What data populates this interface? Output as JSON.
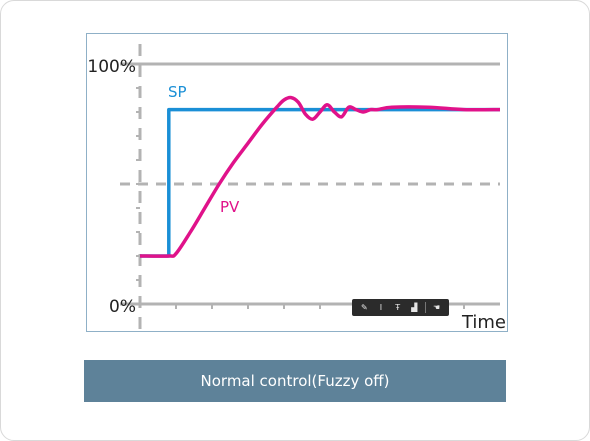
{
  "caption": "Normal control(Fuzzy off)",
  "toolbar": {
    "icons": [
      "pen-icon",
      "text-icon",
      "text-size-icon",
      "image-icon",
      "hand-icon"
    ],
    "glyphs": [
      "✎",
      "I",
      "Ŧ",
      "▟",
      "☚"
    ]
  },
  "colors": {
    "sp": "#1a8fd6",
    "pv": "#e0128a",
    "grid": "#b3b3b3",
    "axis": "#b3b3b3",
    "caption_bg": "#5e8299"
  },
  "chart_data": {
    "type": "line",
    "title": "",
    "xlabel": "Time",
    "ylabel": "",
    "y_tick_labels": [
      "100%",
      "0%"
    ],
    "ylim": [
      0,
      100
    ],
    "xlim": [
      0,
      100
    ],
    "grid": true,
    "reference_line": {
      "style": "dashed",
      "value": 50
    },
    "series": [
      {
        "name": "SP",
        "x": [
          0,
          8,
          8,
          100
        ],
        "y": [
          20,
          20,
          81,
          81
        ]
      },
      {
        "name": "PV",
        "x": [
          0,
          8,
          10,
          14,
          18,
          22,
          26,
          30,
          34,
          38,
          40,
          42,
          44,
          46,
          48,
          50,
          52,
          54,
          56,
          58,
          60,
          62,
          64,
          66,
          70,
          80,
          90,
          100
        ],
        "y": [
          20,
          20,
          21,
          30,
          40,
          50,
          59,
          67,
          75,
          82,
          85,
          86,
          84,
          79,
          77,
          80,
          83,
          80,
          78,
          82,
          81,
          80,
          81,
          81,
          82,
          82,
          81,
          81
        ]
      }
    ]
  }
}
